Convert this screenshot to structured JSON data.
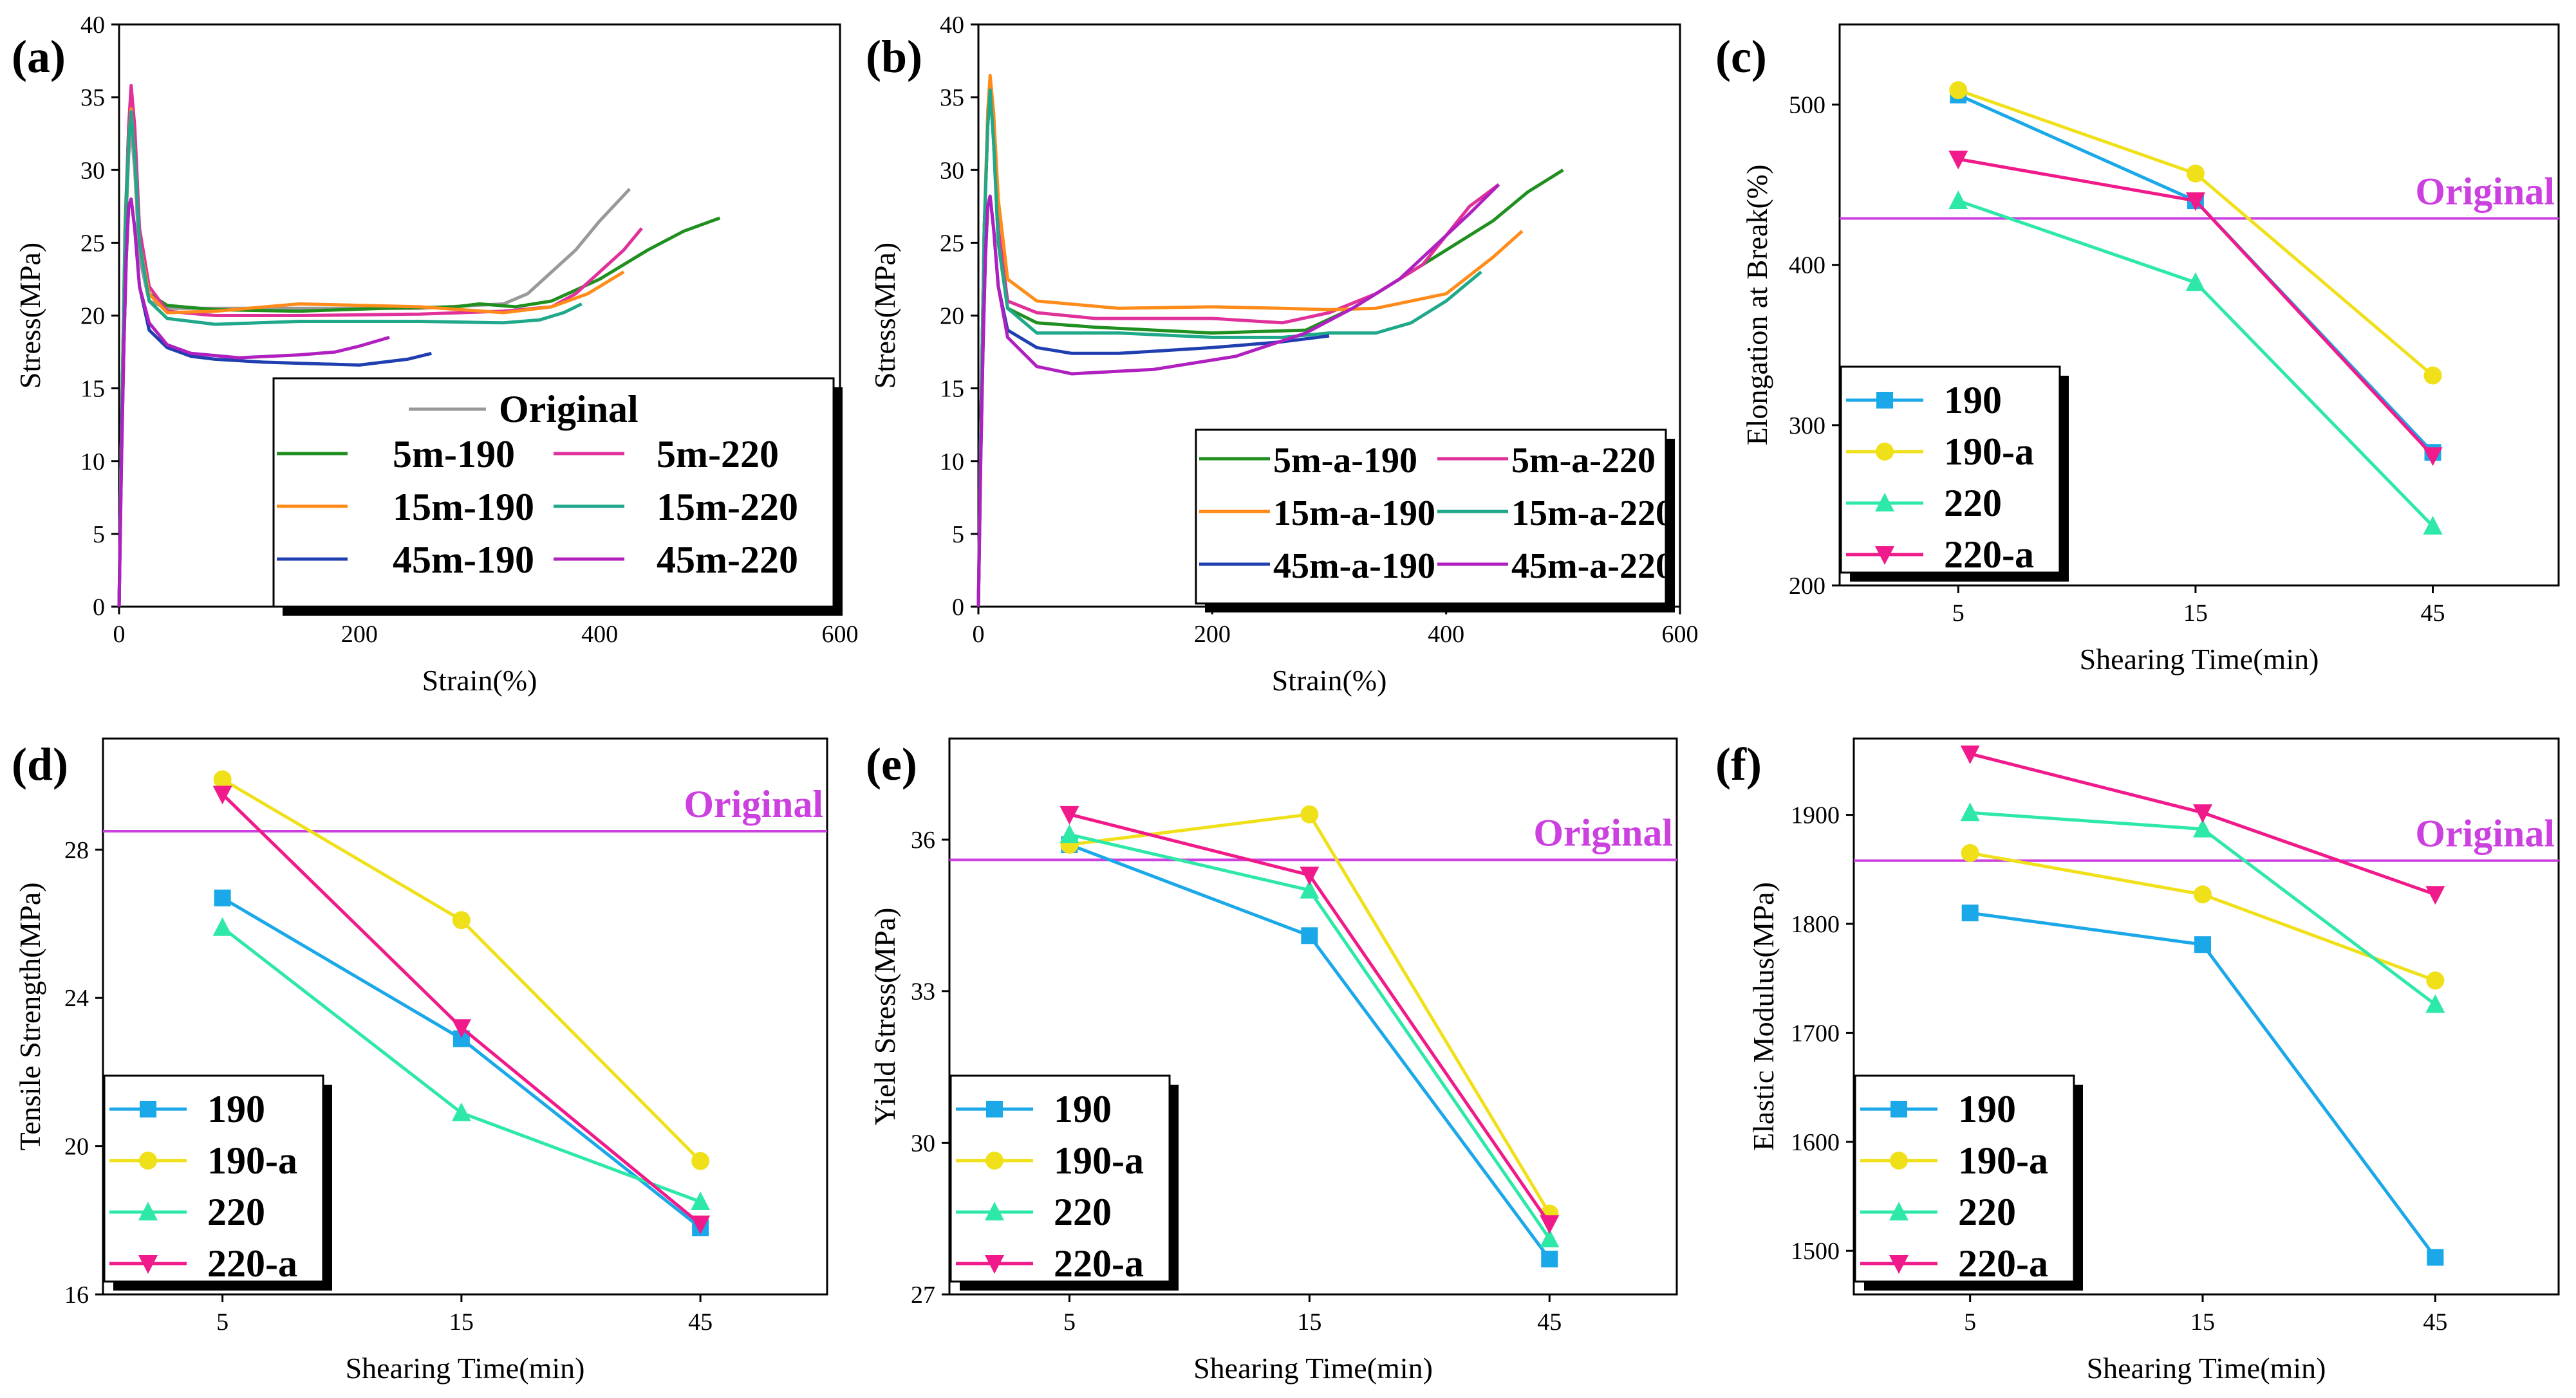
{
  "figure": {
    "colors": {
      "original": "#999999",
      "c5_190": "#1f8f1f",
      "c5_220": "#e0309a",
      "c15_190": "#ff8c1a",
      "c15_220": "#1fa88a",
      "c45_190": "#1f3fb0",
      "c45_220": "#b01fbf",
      "s190": "#1aa8e8",
      "s190a": "#f0e01a",
      "s220": "#2ee8a8",
      "s220a": "#f01a8a",
      "originalLine": "#cc40e0"
    }
  },
  "chart_data": [
    {
      "panel": "(a)",
      "type": "line",
      "xlabel": "Strain(%)",
      "ylabel": "Stress(MPa)",
      "xlim": [
        0,
        600
      ],
      "ylim": [
        0,
        40
      ],
      "xticks": [
        "0",
        "200",
        "400",
        "600"
      ],
      "yticks": [
        "0",
        "5",
        "10",
        "15",
        "20",
        "25",
        "30",
        "35",
        "40"
      ],
      "legend": [
        "Original",
        "5m-190",
        "5m-220",
        "15m-190",
        "15m-220",
        "45m-190",
        "45m-220"
      ],
      "series": [
        {
          "name": "Original",
          "color": "#999999",
          "x": [
            0,
            2,
            5,
            8,
            10,
            13,
            17,
            25,
            40,
            80,
            150,
            250,
            320,
            340,
            360,
            380,
            400,
            425
          ],
          "y": [
            0,
            12,
            25,
            31,
            33,
            30,
            24,
            21,
            20.5,
            20.5,
            20.5,
            20.5,
            20.8,
            21.5,
            23,
            24.5,
            26.5,
            28.7
          ]
        },
        {
          "name": "5m-190",
          "color": "#1f8f1f",
          "x": [
            0,
            2,
            5,
            8,
            10,
            13,
            17,
            25,
            40,
            80,
            150,
            220,
            280,
            300,
            330,
            360,
            400,
            440,
            470,
            500
          ],
          "y": [
            0,
            12,
            26,
            33,
            35,
            32,
            25,
            21.5,
            20.7,
            20.4,
            20.3,
            20.5,
            20.6,
            20.8,
            20.6,
            21,
            22.5,
            24.5,
            25.8,
            26.7
          ]
        },
        {
          "name": "5m-220",
          "color": "#e0309a",
          "x": [
            0,
            2,
            5,
            8,
            10,
            13,
            17,
            25,
            40,
            80,
            150,
            250,
            320,
            360,
            380,
            400,
            420,
            435
          ],
          "y": [
            0,
            12,
            25,
            33,
            35.8,
            33,
            26,
            22,
            20.3,
            20,
            20,
            20.1,
            20.3,
            20.6,
            21.5,
            23,
            24.5,
            26
          ]
        },
        {
          "name": "15m-190",
          "color": "#ff8c1a",
          "x": [
            0,
            2,
            5,
            8,
            10,
            13,
            17,
            25,
            40,
            80,
            150,
            250,
            320,
            360,
            390,
            420
          ],
          "y": [
            0,
            12,
            25,
            32,
            34.2,
            31,
            25,
            21.5,
            20.2,
            20.3,
            20.8,
            20.6,
            20.2,
            20.6,
            21.5,
            23
          ]
        },
        {
          "name": "15m-220",
          "color": "#1fa88a",
          "x": [
            0,
            2,
            5,
            8,
            10,
            13,
            17,
            25,
            40,
            80,
            150,
            250,
            320,
            350,
            370,
            385
          ],
          "y": [
            0,
            12,
            25,
            32,
            34,
            31,
            25,
            21,
            19.8,
            19.4,
            19.6,
            19.6,
            19.5,
            19.7,
            20.2,
            20.8
          ]
        },
        {
          "name": "45m-190",
          "color": "#1f3fb0",
          "x": [
            0,
            2,
            4,
            6,
            8,
            10,
            13,
            17,
            25,
            40,
            60,
            80,
            120,
            160,
            200,
            240,
            260
          ],
          "y": [
            0,
            10,
            18,
            24,
            27.5,
            28,
            26,
            22,
            19,
            17.8,
            17.2,
            17,
            16.8,
            16.7,
            16.6,
            17,
            17.4
          ]
        },
        {
          "name": "45m-220",
          "color": "#b01fbf",
          "x": [
            0,
            2,
            4,
            6,
            8,
            10,
            13,
            17,
            25,
            40,
            60,
            100,
            150,
            180,
            200,
            225
          ],
          "y": [
            0,
            10,
            18,
            24,
            27.5,
            28,
            26,
            22,
            19.5,
            18,
            17.4,
            17.1,
            17.3,
            17.5,
            17.9,
            18.5
          ]
        }
      ]
    },
    {
      "panel": "(b)",
      "type": "line",
      "xlabel": "Strain(%)",
      "ylabel": "Stress(MPa)",
      "xlim": [
        0,
        600
      ],
      "ylim": [
        0,
        40
      ],
      "xticks": [
        "0",
        "200",
        "400",
        "600"
      ],
      "yticks": [
        "0",
        "5",
        "10",
        "15",
        "20",
        "25",
        "30",
        "35",
        "40"
      ],
      "legend": [
        "5m-a-190",
        "5m-a-220",
        "15m-a-190",
        "15m-a-220",
        "45m-a-190",
        "45m-a-220"
      ],
      "series": [
        {
          "name": "5m-a-190",
          "color": "#1f8f1f",
          "x": [
            0,
            2,
            5,
            8,
            10,
            13,
            17,
            25,
            50,
            100,
            200,
            280,
            320,
            360,
            400,
            440,
            470,
            500
          ],
          "y": [
            0,
            12,
            26,
            33,
            35.5,
            32,
            25,
            20.5,
            19.5,
            19.2,
            18.8,
            19,
            20.5,
            22.5,
            24.5,
            26.5,
            28.5,
            30
          ]
        },
        {
          "name": "5m-a-220",
          "color": "#e0309a",
          "x": [
            0,
            2,
            5,
            8,
            10,
            13,
            17,
            25,
            50,
            100,
            200,
            260,
            300,
            340,
            380,
            400,
            420,
            445
          ],
          "y": [
            0,
            12,
            26,
            33,
            36,
            33,
            26,
            21,
            20.2,
            19.8,
            19.8,
            19.5,
            20.2,
            21.5,
            23.5,
            25.5,
            27.5,
            29
          ]
        },
        {
          "name": "15m-a-190",
          "color": "#ff8c1a",
          "x": [
            0,
            2,
            5,
            8,
            10,
            13,
            17,
            25,
            50,
            120,
            200,
            260,
            300,
            340,
            400,
            440,
            465
          ],
          "y": [
            0,
            12,
            26,
            34,
            36.5,
            34,
            28,
            22.5,
            21,
            20.5,
            20.6,
            20.5,
            20.4,
            20.5,
            21.5,
            24,
            25.8
          ]
        },
        {
          "name": "15m-a-220",
          "color": "#1fa88a",
          "x": [
            0,
            2,
            5,
            8,
            10,
            13,
            17,
            25,
            50,
            120,
            200,
            260,
            300,
            340,
            370,
            400,
            430
          ],
          "y": [
            0,
            12,
            26,
            33,
            35.5,
            32,
            25,
            20.5,
            18.8,
            18.8,
            18.5,
            18.5,
            18.8,
            18.8,
            19.5,
            21,
            23
          ]
        },
        {
          "name": "45m-a-190",
          "color": "#1f3fb0",
          "x": [
            0,
            2,
            4,
            6,
            8,
            10,
            13,
            17,
            25,
            50,
            80,
            120,
            200,
            260,
            300
          ],
          "y": [
            0,
            10,
            18,
            24,
            27.5,
            28.2,
            26,
            22,
            19,
            17.8,
            17.4,
            17.4,
            17.8,
            18.2,
            18.6
          ]
        },
        {
          "name": "45m-a-220",
          "color": "#b01fbf",
          "x": [
            0,
            2,
            4,
            6,
            8,
            10,
            13,
            17,
            25,
            50,
            80,
            150,
            220,
            280,
            320,
            360,
            400,
            420,
            445
          ],
          "y": [
            0,
            10,
            18,
            24,
            27.5,
            28.2,
            26,
            22,
            18.5,
            16.5,
            16,
            16.3,
            17.2,
            18.8,
            20.5,
            22.5,
            25.5,
            27,
            29
          ]
        }
      ]
    },
    {
      "panel": "(c)",
      "type": "line",
      "xlabel": "Shearing Time(min)",
      "ylabel": "Elongation at Break(%)",
      "categories": [
        "5",
        "15",
        "45"
      ],
      "ylim": [
        200,
        550
      ],
      "yticks": [
        200,
        300,
        400,
        500
      ],
      "original": {
        "label": "Original",
        "value": 429
      },
      "legend": [
        "190",
        "190-a",
        "220",
        "220-a"
      ],
      "series": [
        {
          "name": "190",
          "color": "#1aa8e8",
          "marker": "square",
          "values": [
            506,
            440,
            283
          ]
        },
        {
          "name": "190-a",
          "color": "#f0e01a",
          "marker": "circle",
          "values": [
            509,
            457,
            331
          ]
        },
        {
          "name": "220",
          "color": "#2ee8a8",
          "marker": "triangle",
          "values": [
            440,
            389,
            237
          ]
        },
        {
          "name": "220-a",
          "color": "#f01a8a",
          "marker": "triangle-down",
          "values": [
            466,
            440,
            281
          ]
        }
      ]
    },
    {
      "panel": "(d)",
      "type": "line",
      "xlabel": "Shearing Time(min)",
      "ylabel": "Tensile Strength(MPa)",
      "categories": [
        "5",
        "15",
        "45"
      ],
      "ylim": [
        16,
        31
      ],
      "yticks": [
        16,
        20,
        24,
        28
      ],
      "original": {
        "label": "Original",
        "value": 28.5
      },
      "legend": [
        "190",
        "190-a",
        "220",
        "220-a"
      ],
      "series": [
        {
          "name": "190",
          "color": "#1aa8e8",
          "marker": "square",
          "values": [
            26.7,
            22.9,
            17.8
          ]
        },
        {
          "name": "190-a",
          "color": "#f0e01a",
          "marker": "circle",
          "values": [
            29.9,
            26.1,
            19.6
          ]
        },
        {
          "name": "220",
          "color": "#2ee8a8",
          "marker": "triangle",
          "values": [
            25.9,
            20.9,
            18.5
          ]
        },
        {
          "name": "220-a",
          "color": "#f01a8a",
          "marker": "triangle-down",
          "values": [
            29.5,
            23.2,
            17.9
          ]
        }
      ]
    },
    {
      "panel": "(e)",
      "type": "line",
      "xlabel": "Shearing Time(min)",
      "ylabel": "Yield Stress(MPa)",
      "categories": [
        "5",
        "15",
        "45"
      ],
      "ylim": [
        27,
        38
      ],
      "yticks": [
        27,
        30,
        33,
        36
      ],
      "original": {
        "label": "Original",
        "value": 35.6
      },
      "legend": [
        "190",
        "190-a",
        "220",
        "220-a"
      ],
      "series": [
        {
          "name": "190",
          "color": "#1aa8e8",
          "marker": "square",
          "values": [
            35.9,
            34.1,
            27.7
          ]
        },
        {
          "name": "190-a",
          "color": "#f0e01a",
          "marker": "circle",
          "values": [
            35.9,
            36.5,
            28.6
          ]
        },
        {
          "name": "220",
          "color": "#2ee8a8",
          "marker": "triangle",
          "values": [
            36.1,
            35.0,
            28.1
          ]
        },
        {
          "name": "220-a",
          "color": "#f01a8a",
          "marker": "triangle-down",
          "values": [
            36.5,
            35.3,
            28.4
          ]
        }
      ]
    },
    {
      "panel": "(f)",
      "type": "line",
      "xlabel": "Shearing Time(min)",
      "ylabel": "Elastic Modulus(MPa)",
      "categories": [
        "5",
        "15",
        "45"
      ],
      "ylim": [
        1460,
        1970
      ],
      "yticks": [
        1500,
        1600,
        1700,
        1800,
        1900
      ],
      "original": {
        "label": "Original",
        "value": 1858
      },
      "legend": [
        "190",
        "190-a",
        "220",
        "220-a"
      ],
      "series": [
        {
          "name": "190",
          "color": "#1aa8e8",
          "marker": "square",
          "values": [
            1810,
            1781,
            1494
          ]
        },
        {
          "name": "190-a",
          "color": "#f0e01a",
          "marker": "circle",
          "values": [
            1865,
            1827,
            1748
          ]
        },
        {
          "name": "220",
          "color": "#2ee8a8",
          "marker": "triangle",
          "values": [
            1902,
            1887,
            1726
          ]
        },
        {
          "name": "220-a",
          "color": "#f01a8a",
          "marker": "triangle-down",
          "values": [
            1956,
            1902,
            1827
          ]
        }
      ]
    }
  ]
}
